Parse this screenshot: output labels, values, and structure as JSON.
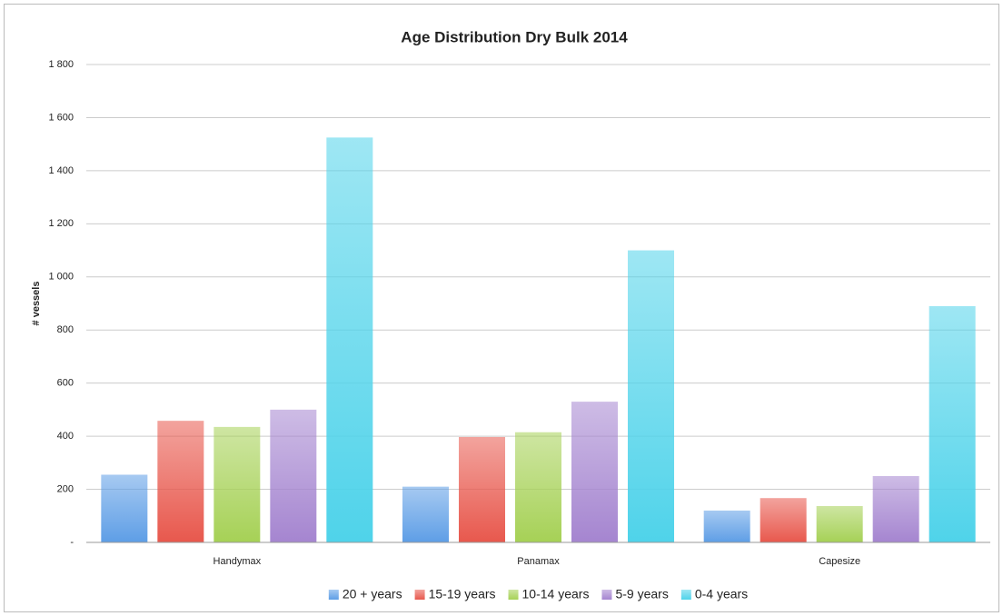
{
  "chart_data": {
    "type": "bar",
    "title": "Age Distribution Dry Bulk 2014",
    "y_label": "# vessels",
    "categories": [
      "Handymax",
      "Panamax",
      "Capesize"
    ],
    "series": [
      {
        "name": "20 + years",
        "color": "#5e9ee6",
        "values": [
          255,
          210,
          120
        ]
      },
      {
        "name": "15-19 years",
        "color": "#e8584d",
        "values": [
          458,
          397,
          167
        ]
      },
      {
        "name": "10-14 years",
        "color": "#a6d156",
        "values": [
          435,
          415,
          137
        ]
      },
      {
        "name": "5-9 years",
        "color": "#a585d0",
        "values": [
          500,
          530,
          250
        ]
      },
      {
        "name": "0-4 years",
        "color": "#4fd3ea",
        "values": [
          1525,
          1100,
          890
        ]
      }
    ],
    "ylim": [
      0,
      1800
    ],
    "yticks": [
      {
        "value": 0,
        "label": "-"
      },
      200,
      400,
      600,
      800,
      {
        "value": 1000,
        "label": "1 000"
      },
      {
        "value": 1200,
        "label": "1 200"
      },
      {
        "value": 1400,
        "label": "1 400"
      },
      {
        "value": 1600,
        "label": "1 600"
      },
      {
        "value": 1800,
        "label": "1 800"
      }
    ],
    "grid": true,
    "legend": "bottom"
  }
}
